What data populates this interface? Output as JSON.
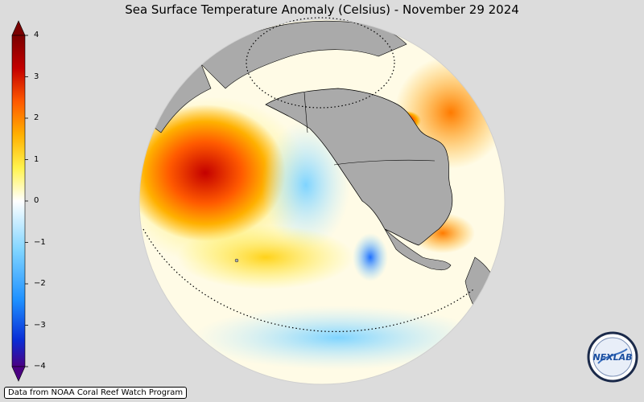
{
  "title": "Sea Surface Temperature Anomaly (Celsius) - November 29 2024",
  "colorbar": {
    "ticks": [
      "4",
      "3",
      "2",
      "1",
      "0",
      "−1",
      "−2",
      "−3",
      "−4"
    ],
    "min": -4,
    "max": 4,
    "colors": [
      "#4b0082",
      "#0a2dd6",
      "#1e90ff",
      "#7fd4ff",
      "#ffffff",
      "#fff34d",
      "#ffb000",
      "#ff5a00",
      "#c40000",
      "#7a0000"
    ]
  },
  "map": {
    "land_color": "#aaaaaa",
    "background": "#dcdcdc"
  },
  "credit": "Data from NOAA Coral Reef Watch Program",
  "logo": {
    "text": "NEXLAB"
  }
}
